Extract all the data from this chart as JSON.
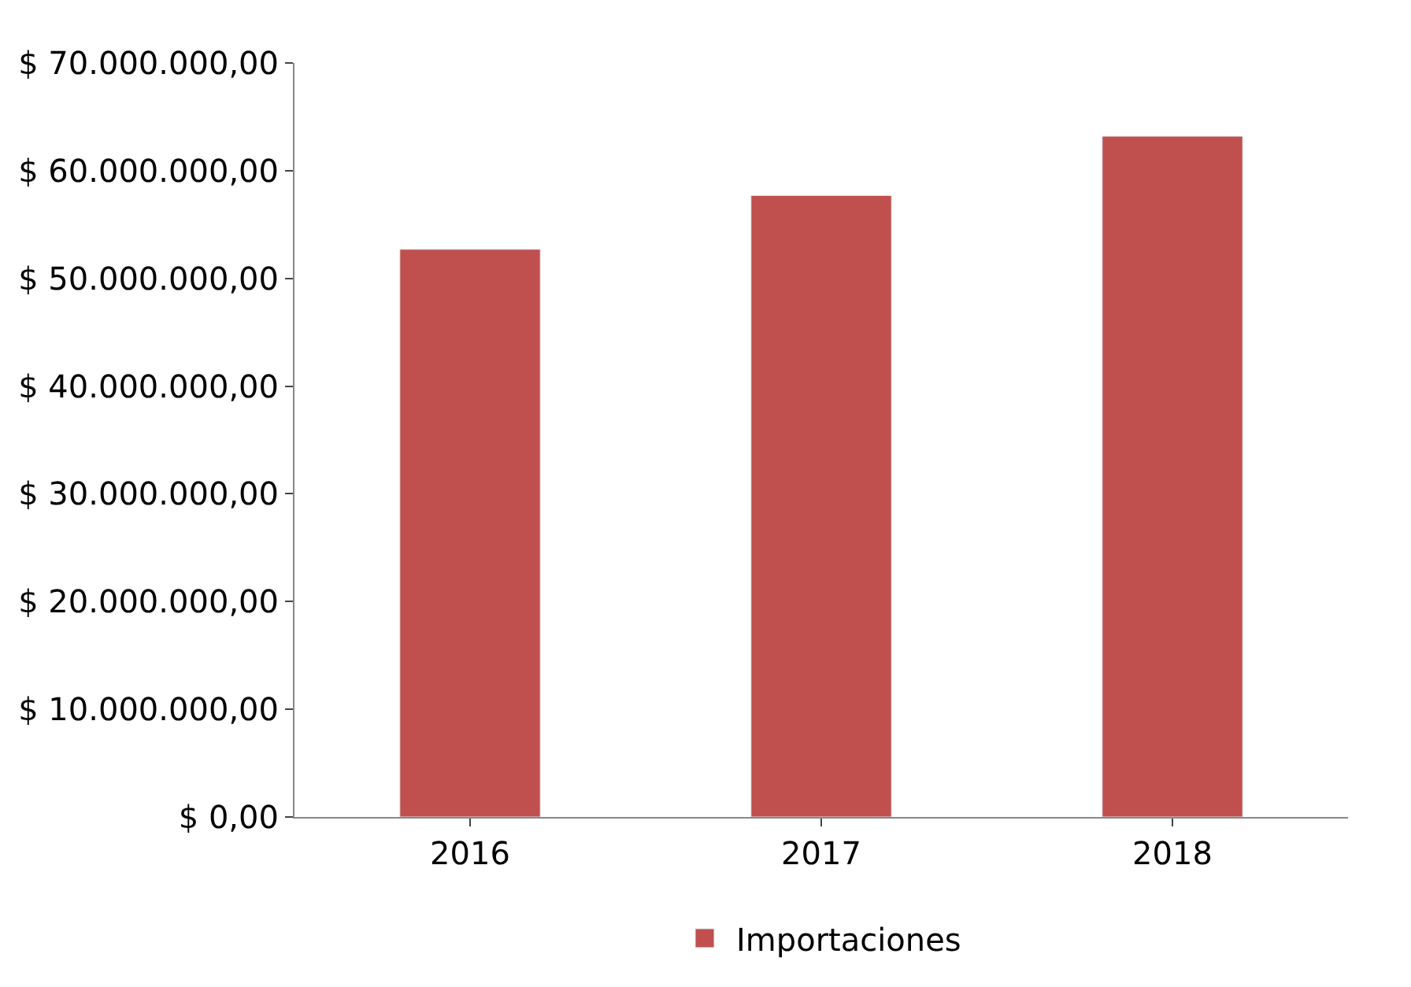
{
  "chart_data": {
    "type": "bar",
    "categories": [
      "2016",
      "2017",
      "2018"
    ],
    "series": [
      {
        "name": "Importaciones",
        "color": "#c0504d",
        "values": [
          52700000,
          57700000,
          63200000
        ]
      }
    ],
    "ylim": [
      0,
      70000000
    ],
    "yticks": [
      {
        "value": 0,
        "label": "$ 0,00"
      },
      {
        "value": 10000000,
        "label": "$ 10.000.000,00"
      },
      {
        "value": 20000000,
        "label": "$ 20.000.000,00"
      },
      {
        "value": 30000000,
        "label": "$ 30.000.000,00"
      },
      {
        "value": 40000000,
        "label": "$ 40.000.000,00"
      },
      {
        "value": 50000000,
        "label": "$ 50.000.000,00"
      },
      {
        "value": 60000000,
        "label": "$ 60.000.000,00"
      },
      {
        "value": 70000000,
        "label": "$ 70.000.000,00"
      }
    ],
    "legend": "bottom"
  }
}
